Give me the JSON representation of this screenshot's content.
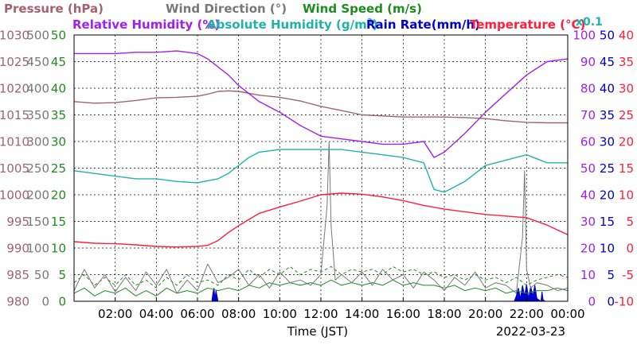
{
  "chart_data": {
    "type": "line",
    "header": {
      "row1": [
        {
          "text": "Pressure (hPa)",
          "color": "#a0646e"
        },
        {
          "text": "Wind Direction (°)",
          "color": "#787878"
        },
        {
          "text": "Wind Speed (m/s)",
          "color": "#1e8c1e"
        }
      ],
      "row2": [
        {
          "text": "Relative Humidity (%)",
          "color": "#a020f0"
        },
        {
          "text": "Absolute Humidity (g/m",
          "sup": "3",
          "tail": ")",
          "color": "#20b2aa"
        },
        {
          "text": "Rain Rate(mm/h)",
          "color": "#0000cc"
        },
        {
          "text": "Temperature (°C)",
          "color": "#ff1e3c"
        }
      ],
      "x01": {
        "text": "x0.1",
        "color": "#20b2aa"
      }
    },
    "xlabel": "Time (JST)",
    "date": "2022-03-23",
    "x_ticks": [
      "02:00",
      "04:00",
      "06:00",
      "08:00",
      "10:00",
      "12:00",
      "14:00",
      "16:00",
      "18:00",
      "20:00",
      "22:00",
      "00:00"
    ],
    "x_range_hours": [
      0,
      24
    ],
    "axes": {
      "pressure": {
        "color": "#a0646e",
        "ticks": [
          "1030",
          "1025",
          "1020",
          "1015",
          "1010",
          "1005",
          "1000",
          "995",
          "990",
          "985",
          "980"
        ],
        "range": [
          980,
          1030
        ]
      },
      "wind_direction": {
        "color": "#787878",
        "ticks": [
          "500",
          "450",
          "400",
          "350",
          "300",
          "250",
          "200",
          "150",
          "100",
          "50",
          "0"
        ],
        "range": [
          0,
          500
        ]
      },
      "wind_speed": {
        "color": "#1e8c1e",
        "ticks": [
          "50",
          "45",
          "40",
          "35",
          "30",
          "25",
          "20",
          "15",
          "10",
          "5",
          "0"
        ],
        "range": [
          0,
          50
        ]
      },
      "humidity": {
        "color": "#a020f0",
        "ticks": [
          "100",
          "90",
          "80",
          "70",
          "60",
          "50",
          "40",
          "30",
          "20",
          "10",
          "0"
        ],
        "range": [
          0,
          100
        ]
      },
      "rain_rate": {
        "color": "#0000cc",
        "ticks": [
          "50",
          "45",
          "40",
          "35",
          "30",
          "25",
          "20",
          "15",
          "10",
          "5",
          "0"
        ],
        "range": [
          0,
          50
        ]
      },
      "temperature": {
        "color": "#ff1e3c",
        "ticks": [
          "40",
          "35",
          "30",
          "25",
          "20",
          "15",
          "10",
          "5",
          "0",
          "-5",
          "-10"
        ],
        "range": [
          -10,
          40
        ]
      }
    },
    "series": [
      {
        "key": "pressure",
        "unit": "hPa",
        "color": "#a0646e",
        "axis": "pressure",
        "x": [
          0,
          1,
          2,
          3,
          4,
          5,
          6,
          6.5,
          7,
          7.5,
          8,
          9,
          10,
          11,
          12,
          13,
          14,
          15,
          16,
          17,
          18,
          19,
          20,
          21,
          22,
          23,
          24
        ],
        "y": [
          1017.5,
          1017.2,
          1017.3,
          1017.7,
          1018.2,
          1018.3,
          1018.5,
          1018.9,
          1019.4,
          1019.5,
          1019.4,
          1018.7,
          1018.3,
          1017.6,
          1016.6,
          1015.8,
          1015.0,
          1014.8,
          1014.6,
          1014.6,
          1014.6,
          1014.5,
          1014.3,
          1013.9,
          1013.6,
          1013.5,
          1013.5
        ]
      },
      {
        "key": "relative_humidity",
        "unit": "%",
        "color": "#a020f0",
        "axis": "humidity",
        "x": [
          0,
          1,
          2,
          3,
          4,
          5,
          6,
          6.5,
          7,
          7.5,
          8,
          9,
          10,
          11,
          12,
          13,
          14,
          15,
          16,
          17,
          17.5,
          18,
          19,
          20,
          21,
          22,
          23,
          24
        ],
        "y": [
          93,
          93,
          93,
          93.5,
          93.5,
          94,
          93,
          91,
          88,
          85,
          81,
          75,
          71,
          66,
          62,
          61,
          60,
          59,
          59,
          60,
          54,
          56,
          63,
          71,
          78,
          85,
          90,
          91
        ]
      },
      {
        "key": "absolute_humidity",
        "unit": "g/m3 x0.1",
        "color": "#20b2aa",
        "axis": "humidity",
        "x": [
          0,
          1,
          2,
          3,
          4,
          5,
          6,
          7,
          7.5,
          8,
          8.5,
          9,
          10,
          11,
          12,
          13,
          14,
          15,
          16,
          17,
          17.5,
          18,
          19,
          20,
          21,
          22,
          23,
          24
        ],
        "y": [
          49,
          48,
          47,
          46,
          46,
          45,
          44.5,
          46,
          48,
          51,
          54,
          56,
          57,
          57,
          57,
          57,
          56,
          55,
          54,
          52,
          42,
          41,
          45,
          51,
          53,
          55,
          52,
          52
        ]
      },
      {
        "key": "temperature",
        "unit": "°C",
        "color": "#ff1e3c",
        "axis": "temperature",
        "x": [
          0,
          1,
          2,
          3,
          4,
          5,
          6,
          6.5,
          7,
          7.5,
          8,
          9,
          10,
          11,
          12,
          13,
          14,
          15,
          16,
          17,
          18,
          19,
          20,
          21,
          22,
          23,
          24
        ],
        "y": [
          1.2,
          0.9,
          0.8,
          0.6,
          0.3,
          0.2,
          0.3,
          0.5,
          1.4,
          2.9,
          4.2,
          6.5,
          7.7,
          8.8,
          10.0,
          10.3,
          10.1,
          9.6,
          8.9,
          8.0,
          7.3,
          6.8,
          6.3,
          6.0,
          5.7,
          4.3,
          2.5
        ]
      },
      {
        "key": "wind_direction",
        "unit": "°",
        "color": "#787878",
        "axis": "wind_direction",
        "x": [
          0,
          0.5,
          1,
          1.5,
          2,
          2.5,
          3,
          3.5,
          4,
          4.5,
          5,
          5.5,
          6,
          6.5,
          7,
          7.5,
          8,
          8.5,
          9,
          9.5,
          10,
          10.5,
          11,
          11.5,
          12,
          12.3,
          12.4,
          12.5,
          12.7,
          13,
          13.5,
          14,
          14.5,
          15,
          15.5,
          16,
          16.5,
          17,
          17.5,
          18,
          18.5,
          19,
          19.5,
          20,
          20.5,
          21,
          21.5,
          21.8,
          21.9,
          22,
          22.2,
          22.5,
          23,
          23.5,
          24
        ],
        "y": [
          20,
          60,
          25,
          50,
          18,
          45,
          20,
          55,
          30,
          60,
          15,
          40,
          20,
          70,
          35,
          45,
          60,
          30,
          50,
          25,
          55,
          35,
          40,
          30,
          50,
          180,
          300,
          140,
          40,
          50,
          35,
          55,
          30,
          60,
          40,
          50,
          25,
          55,
          40,
          20,
          45,
          30,
          55,
          25,
          35,
          30,
          15,
          120,
          245,
          60,
          25,
          35,
          30,
          20,
          25
        ]
      },
      {
        "key": "wind_speed_max",
        "unit": "m/s",
        "color": "#1e8c1e",
        "dashed": true,
        "axis": "wind_speed",
        "x": [
          0,
          0.5,
          1,
          1.5,
          2,
          2.5,
          3,
          3.5,
          4,
          4.5,
          5,
          5.5,
          6,
          6.5,
          7,
          7.5,
          8,
          8.5,
          9,
          9.5,
          10,
          10.5,
          11,
          11.5,
          12,
          12.5,
          13,
          13.5,
          14,
          14.5,
          15,
          15.5,
          16,
          16.5,
          17,
          17.5,
          18,
          18.5,
          19,
          19.5,
          20,
          20.5,
          21,
          21.5,
          22,
          22.5,
          23,
          23.5,
          24
        ],
        "y": [
          3.5,
          5,
          3,
          4.5,
          3,
          5,
          3,
          4,
          2.5,
          4.5,
          3,
          5,
          3.5,
          4,
          3,
          5,
          4,
          6,
          4.5,
          6,
          5,
          6.5,
          5,
          6,
          5.5,
          6.5,
          5,
          6,
          5.5,
          6,
          5,
          6.5,
          5.5,
          6,
          5,
          5.5,
          4.5,
          5,
          4,
          5,
          4,
          4.5,
          3.5,
          4.5,
          3,
          4,
          4.5,
          5,
          4.5
        ]
      },
      {
        "key": "wind_speed_avg",
        "unit": "m/s",
        "color": "#1e8c1e",
        "axis": "wind_speed",
        "x": [
          0,
          0.5,
          1,
          1.5,
          2,
          2.5,
          3,
          3.5,
          4,
          4.5,
          5,
          5.5,
          6,
          6.5,
          7,
          7.5,
          8,
          8.5,
          9,
          9.5,
          10,
          10.5,
          11,
          11.5,
          12,
          12.5,
          13,
          13.5,
          14,
          14.5,
          15,
          15.5,
          16,
          16.5,
          17,
          17.5,
          18,
          18.5,
          19,
          19.5,
          20,
          20.5,
          21,
          21.5,
          22,
          22.5,
          23,
          23.5,
          24
        ],
        "y": [
          1.5,
          2.5,
          1,
          2,
          1.5,
          2.5,
          1,
          2,
          1,
          2.5,
          1.5,
          2,
          1.5,
          2.5,
          2,
          2.5,
          2,
          3,
          2.5,
          3.5,
          3,
          3.5,
          3,
          3.5,
          3,
          4,
          3,
          3.5,
          3,
          3.5,
          3,
          4,
          3,
          3.5,
          3,
          3,
          2.5,
          3,
          2,
          2.5,
          2,
          2.5,
          1.5,
          2,
          1.5,
          2,
          2,
          2.5,
          2
        ]
      },
      {
        "key": "rain_rate",
        "unit": "mm/h",
        "color": "#0000cc",
        "fill": true,
        "axis": "rain_rate",
        "x": [
          0,
          6.7,
          6.75,
          6.8,
          6.85,
          6.9,
          7.0,
          21.4,
          21.5,
          21.6,
          21.7,
          21.8,
          21.9,
          22.0,
          22.1,
          22.2,
          22.3,
          22.4,
          22.5,
          22.7,
          22.75,
          22.8,
          22.9,
          24
        ],
        "y": [
          0,
          0,
          1.5,
          2.5,
          0.5,
          2,
          0,
          0,
          1,
          2.5,
          0.5,
          3,
          1,
          3.2,
          0.5,
          2.8,
          1,
          3,
          0.5,
          0,
          1.8,
          0.3,
          0,
          0
        ]
      }
    ]
  }
}
